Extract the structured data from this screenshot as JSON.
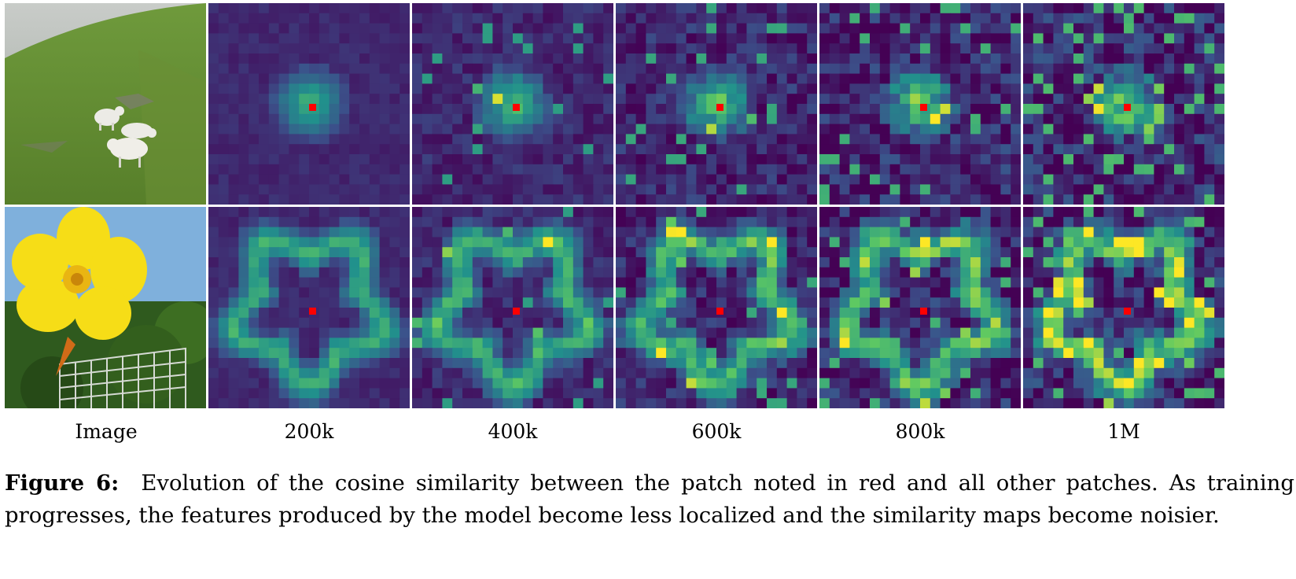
{
  "figure": {
    "column_labels": [
      "Image",
      "200k",
      "400k",
      "600k",
      "800k",
      "1M"
    ],
    "rows": [
      {
        "name": "sheep",
        "query_patch": {
          "row": 10,
          "col": 10
        }
      },
      {
        "name": "flower",
        "query_patch": {
          "row": 10,
          "col": 10
        }
      }
    ],
    "grid_patches": 20,
    "colormap": [
      "#440154",
      "#3b528b",
      "#21918c",
      "#5ec962",
      "#fde725"
    ],
    "query_color": "#ff0000"
  },
  "caption": {
    "label": "Figure 6:",
    "text": "Evolution of the cosine similarity between the patch noted in red and all other patches. As training progresses, the features produced by the model become less localized and the similarity maps become noisier."
  }
}
